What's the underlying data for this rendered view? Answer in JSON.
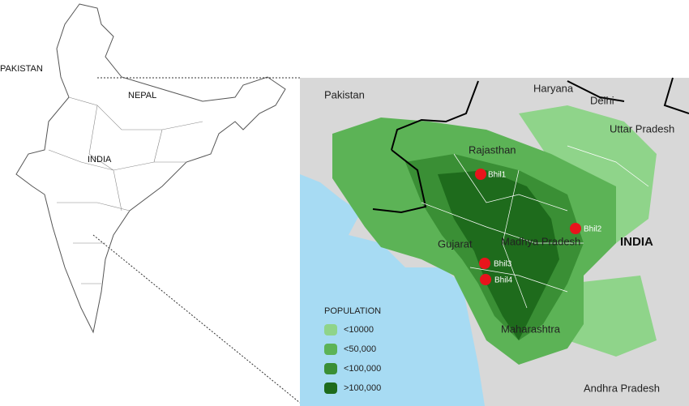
{
  "left_map": {
    "labels": [
      "PAKISTAN",
      "NEPAL",
      "INDIA"
    ]
  },
  "right_map": {
    "labels": [
      "Pakistan",
      "Haryana",
      "Delhi",
      "Uttar Pradesh",
      "Rajasthan",
      "Gujarat",
      "Madhya Pradesh",
      "INDIA",
      "Maharashtra",
      "Andhra Pradesh"
    ],
    "sites": [
      "Bhil1",
      "Bhil2",
      "Bhil3",
      "Bhil4"
    ]
  },
  "legend": {
    "title": "POPULATION",
    "items": [
      {
        "label": "<10000",
        "color": "#8fd48a"
      },
      {
        "label": "<50,000",
        "color": "#5cb356"
      },
      {
        "label": "<100,000",
        "color": "#3a8f35"
      },
      {
        "label": ">100,000",
        "color": "#1e6b1c"
      }
    ]
  }
}
